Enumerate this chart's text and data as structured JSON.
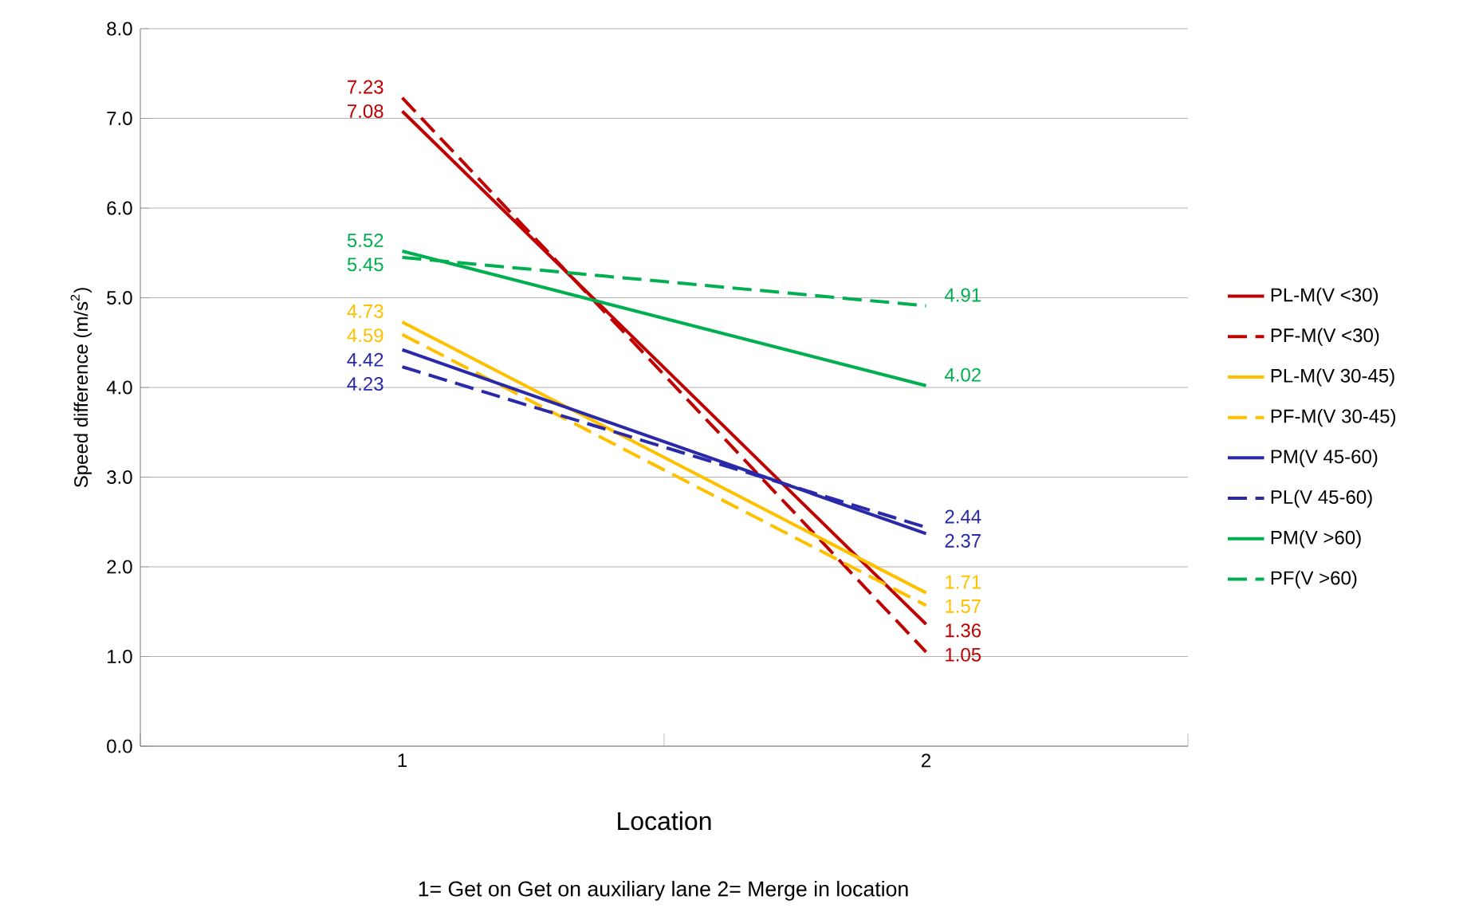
{
  "chart_data": {
    "type": "line",
    "xlabel": "Location",
    "ylabel": "Speed difference  (m/s$^{2}$)",
    "categories": [
      "1",
      "2"
    ],
    "series": [
      {
        "name": "PL-M(V <30)",
        "color": "#c00000",
        "line_style": "solid",
        "values": [
          7.08,
          1.36
        ]
      },
      {
        "name": "PF-M(V <30)",
        "color": "#c00000",
        "line_style": "dashed",
        "values": [
          7.23,
          1.05
        ]
      },
      {
        "name": "PL-M(V 30-45)",
        "color": "#ffc000",
        "line_style": "solid",
        "values": [
          4.73,
          1.71
        ]
      },
      {
        "name": "PF-M(V 30-45)",
        "color": "#ffc000",
        "line_style": "dashed",
        "values": [
          4.59,
          1.57
        ]
      },
      {
        "name": "PM(V 45-60)",
        "color": "#2a2aa8",
        "line_style": "solid",
        "values": [
          4.42,
          2.37
        ]
      },
      {
        "name": "PL(V 45-60)",
        "color": "#2a2aa8",
        "line_style": "dashed",
        "values": [
          4.23,
          2.44
        ]
      },
      {
        "name": "PM(V >60)",
        "color": "#00b050",
        "line_style": "solid",
        "values": [
          5.52,
          4.02
        ]
      },
      {
        "name": "PF(V >60)",
        "color": "#00b050",
        "line_style": "dashed",
        "values": [
          5.45,
          4.91
        ]
      }
    ],
    "ylim": [
      0,
      8
    ],
    "yticks": [
      {
        "value": 0,
        "label": "0.0"
      },
      {
        "value": 1,
        "label": "1.0"
      },
      {
        "value": 2,
        "label": "2.0"
      },
      {
        "value": 3,
        "label": "3.0"
      },
      {
        "value": 4,
        "label": "4.0"
      },
      {
        "value": 5,
        "label": "5.0"
      },
      {
        "value": 6,
        "label": "6.0"
      },
      {
        "value": 7,
        "label": "7.0"
      },
      {
        "value": 8,
        "label": "8.0"
      }
    ],
    "grid": "y",
    "legend": "right",
    "marker": "none",
    "data_labels": true,
    "annotations": [
      "1= Get on Get on auxiliary lane      2= Merge in location"
    ]
  }
}
